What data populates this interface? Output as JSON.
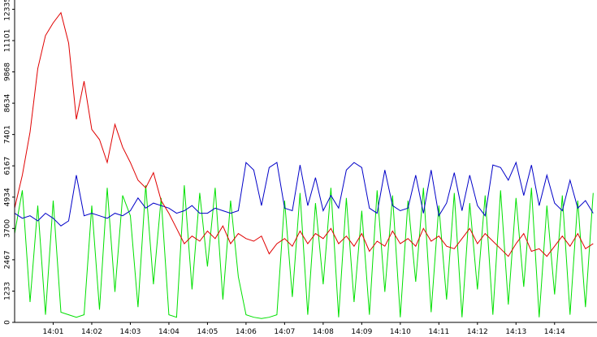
{
  "chart_data": {
    "type": "line",
    "x": [
      0,
      0.2,
      0.4,
      0.6,
      0.8,
      1,
      1.2,
      1.4,
      1.6,
      1.8,
      2,
      2.2,
      2.4,
      2.6,
      2.8,
      3,
      3.2,
      3.4,
      3.6,
      3.8,
      4,
      4.2,
      4.4,
      4.6,
      4.8,
      5,
      5.2,
      5.4,
      5.6,
      5.8,
      6,
      6.2,
      6.4,
      6.6,
      6.8,
      7,
      7.2,
      7.4,
      7.6,
      7.8,
      8,
      8.2,
      8.4,
      8.6,
      8.8,
      9,
      9.2,
      9.4,
      9.6,
      9.8,
      10,
      10.2,
      10.4,
      10.6,
      10.8,
      11,
      11.2,
      11.4,
      11.6,
      11.8,
      12,
      12.2,
      12.4,
      12.6,
      12.8,
      13,
      13.2,
      13.4,
      13.6,
      13.8,
      14,
      14.2,
      14.4,
      14.6,
      14.8,
      15
    ],
    "xlim": [
      0,
      15.1
    ],
    "xticks": [
      {
        "value": 1,
        "label": "14:01"
      },
      {
        "value": 2,
        "label": "14:02"
      },
      {
        "value": 3,
        "label": "14:03"
      },
      {
        "value": 4,
        "label": "14:04"
      },
      {
        "value": 5,
        "label": "14:05"
      },
      {
        "value": 6,
        "label": "14:06"
      },
      {
        "value": 7,
        "label": "14:07"
      },
      {
        "value": 8,
        "label": "14:08"
      },
      {
        "value": 9,
        "label": "14:09"
      },
      {
        "value": 10,
        "label": "14:10"
      },
      {
        "value": 11,
        "label": "14:11"
      },
      {
        "value": 12,
        "label": "14:12"
      },
      {
        "value": 13,
        "label": "14:13"
      },
      {
        "value": 14,
        "label": "14:14"
      }
    ],
    "ylim": [
      0,
      12700
    ],
    "yticks": [
      0,
      1233,
      2467,
      3700,
      4934,
      6167,
      7401,
      8634,
      9868,
      11101,
      12335
    ],
    "series": [
      {
        "color": "#00e000",
        "values": [
          3500,
          5200,
          800,
          4600,
          300,
          4800,
          400,
          300,
          200,
          300,
          4600,
          500,
          5300,
          1200,
          5000,
          4200,
          600,
          5400,
          1500,
          4900,
          300,
          200,
          5400,
          1300,
          5100,
          2200,
          5300,
          900,
          4800,
          1800,
          300,
          200,
          150,
          200,
          300,
          4800,
          1000,
          5100,
          300,
          4700,
          1500,
          5300,
          200,
          4900,
          800,
          4400,
          300,
          5200,
          1200,
          5000,
          200,
          4800,
          1600,
          5300,
          400,
          4600,
          900,
          5100,
          200,
          4700,
          1300,
          5000,
          300,
          5200,
          700,
          4900,
          1400,
          5300,
          200,
          4600,
          1100,
          5000,
          300,
          4800,
          600,
          5100
        ]
      },
      {
        "color": "#0000c8",
        "values": [
          4300,
          4100,
          4200,
          4000,
          4300,
          4100,
          3800,
          4000,
          5800,
          4200,
          4300,
          4200,
          4100,
          4300,
          4200,
          4400,
          4900,
          4500,
          4700,
          4600,
          4500,
          4300,
          4400,
          4600,
          4300,
          4300,
          4500,
          4400,
          4300,
          4400,
          6300,
          6000,
          4600,
          6100,
          6300,
          4500,
          4400,
          6200,
          4600,
          5700,
          4400,
          5000,
          4500,
          6000,
          6300,
          6100,
          4500,
          4300,
          6000,
          4600,
          4400,
          4500,
          5800,
          4300,
          6000,
          4200,
          4700,
          5900,
          4400,
          5800,
          4600,
          4200,
          6200,
          6100,
          5600,
          6300,
          5000,
          6200,
          4600,
          5800,
          4700,
          4400,
          5600,
          4500,
          4800,
          4300
        ]
      },
      {
        "color": "#e00000",
        "values": [
          4500,
          5800,
          7500,
          10000,
          11300,
          11800,
          12200,
          11000,
          8000,
          9500,
          7600,
          7200,
          6300,
          7800,
          6900,
          6300,
          5600,
          5300,
          5900,
          4800,
          4300,
          3700,
          3100,
          3400,
          3200,
          3600,
          3300,
          3800,
          3100,
          3500,
          3300,
          3200,
          3400,
          2700,
          3100,
          3300,
          3000,
          3600,
          3100,
          3500,
          3300,
          3700,
          3100,
          3400,
          3000,
          3500,
          2800,
          3200,
          3000,
          3600,
          3100,
          3300,
          3000,
          3700,
          3200,
          3400,
          3000,
          2900,
          3300,
          3700,
          3100,
          3500,
          3200,
          2900,
          2600,
          3100,
          3500,
          2800,
          2900,
          2600,
          3000,
          3400,
          3000,
          3500,
          2900,
          3100
        ]
      }
    ]
  }
}
